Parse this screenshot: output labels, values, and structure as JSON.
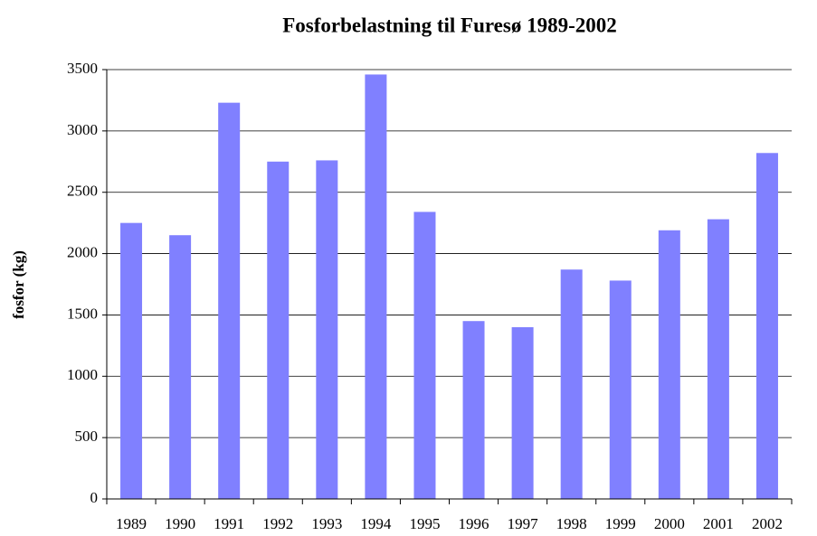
{
  "chart_data": {
    "type": "bar",
    "title": "Fosforbelastning til Furesø 1989-2002",
    "y_label": "fosfor (kg)",
    "categories": [
      "1989",
      "1990",
      "1991",
      "1992",
      "1993",
      "1994",
      "1995",
      "1996",
      "1997",
      "1998",
      "1999",
      "2000",
      "2001",
      "2002"
    ],
    "values": [
      2250,
      2150,
      3230,
      2750,
      2760,
      3460,
      2340,
      1450,
      1400,
      1870,
      1780,
      2190,
      2280,
      2820
    ],
    "color": "#8080ff",
    "ylim": [
      0,
      3500
    ],
    "yticks": [
      0,
      500,
      1000,
      1500,
      2000,
      2500,
      3000,
      3500
    ],
    "grid": true
  }
}
